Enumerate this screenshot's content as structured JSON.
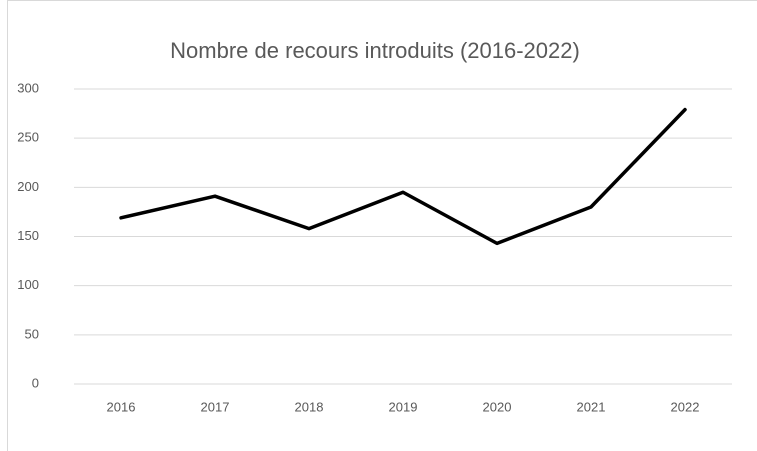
{
  "chart_data": {
    "type": "line",
    "title": "Nombre de recours introduits  (2016-2022)",
    "categories": [
      "2016",
      "2017",
      "2018",
      "2019",
      "2020",
      "2021",
      "2022"
    ],
    "series": [
      {
        "name": "Nombre de recours introduits",
        "color": "#000000",
        "values": [
          169,
          191,
          158,
          195,
          143,
          180,
          279
        ]
      }
    ],
    "ylim": [
      0,
      300
    ],
    "yticks": [
      0,
      50,
      100,
      150,
      200,
      250,
      300
    ],
    "grid": true
  }
}
